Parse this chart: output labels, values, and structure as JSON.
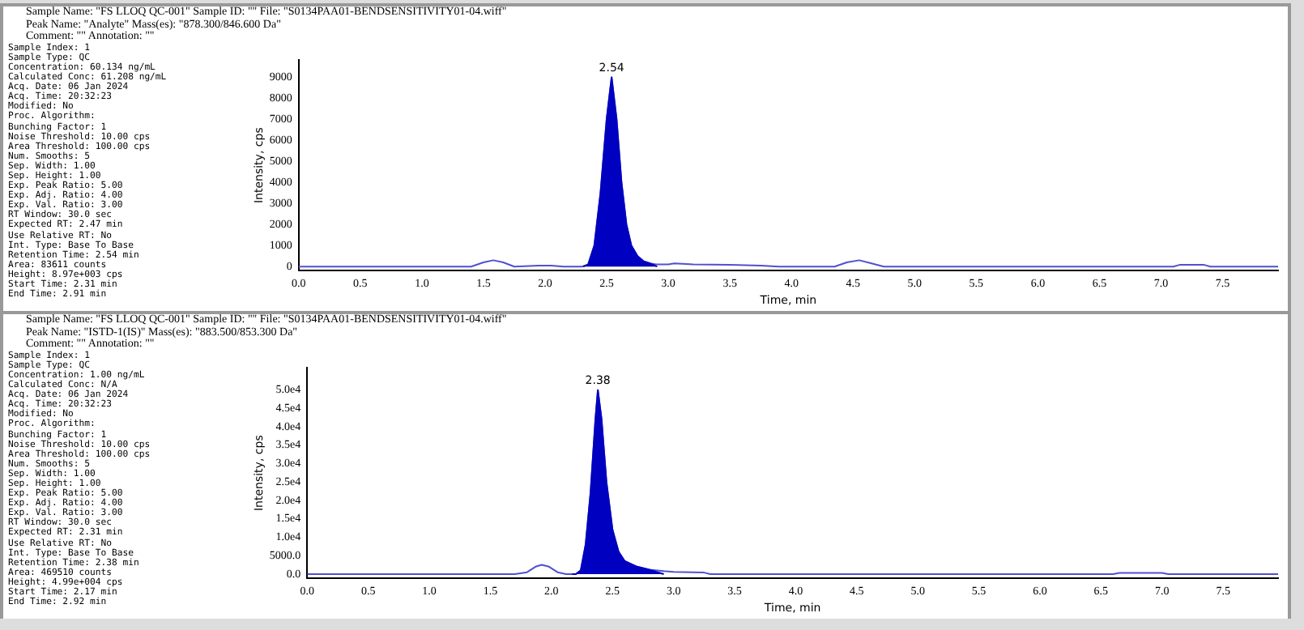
{
  "chart_data": [
    {
      "type": "line",
      "title": "Sample Name: \"FS LLOQ QC-001\" Sample ID: \"\" File: \"S0134PAA01-BENDSENSITIVITY01-04.wiff\"",
      "subtitle": "Peak Name: \"Analyte\" Mass(es): \"878.300/846.600 Da\"",
      "xlabel": "Time, min",
      "ylabel": "Intensity, cps",
      "annotations": [
        "Comment: \"\" Annotation: \"\"",
        "Sample Index: 1",
        "Sample Type: QC",
        "Concentration: 60.134 ng/mL",
        "Calculated Conc: 61.208 ng/mL",
        "Acq. Date: 06 Jan 2024",
        "Acq. Time: 20:32:23",
        "Modified: No",
        "Proc. Algorithm:",
        "Bunching Factor: 1",
        "Noise Threshold: 10.00 cps",
        "Area Threshold: 100.00 cps",
        "Num. Smooths: 5",
        "Sep. Width: 1.00",
        "Sep. Height: 1.00",
        "Exp. Peak Ratio: 5.00",
        "Exp. Adj. Ratio: 4.00",
        "Exp. Val. Ratio: 3.00",
        "RT Window: 30.0 sec",
        "Expected RT: 2.47 min",
        "Use Relative RT: No",
        "Int. Type: Base To Base",
        "Retention Time: 2.54 min",
        "Area: 83611 counts",
        "Height: 8.97e+003 cps",
        "Start Time: 2.31 min",
        "End Time: 2.91 min",
        {
          "text": "2.54",
          "x": 2.54,
          "y": 8970
        }
      ],
      "series": [
        {
          "type": "line",
          "color": "#5050d0",
          "x": [
            0,
            1.4,
            1.5,
            1.58,
            1.66,
            1.75,
            1.95,
            2.05,
            2.15,
            2.3,
            2.35,
            2.4,
            2.45,
            2.5,
            2.54,
            2.58,
            2.62,
            2.66,
            2.7,
            2.75,
            2.8,
            2.85,
            2.9,
            3.0,
            3.05,
            3.2,
            3.5,
            3.75,
            3.9,
            4.35,
            4.45,
            4.55,
            4.65,
            4.75,
            7.1,
            7.15,
            7.35,
            7.4,
            7.95
          ],
          "values": [
            0,
            0,
            200,
            300,
            200,
            0,
            50,
            50,
            0,
            0,
            100,
            1000,
            3500,
            7000,
            8970,
            7000,
            4000,
            2000,
            1000,
            500,
            250,
            150,
            100,
            100,
            150,
            100,
            80,
            50,
            0,
            0,
            200,
            300,
            150,
            0,
            0,
            80,
            80,
            0,
            0
          ]
        },
        {
          "type": "area",
          "color": "#0000c0",
          "x": [
            2.31,
            2.35,
            2.4,
            2.45,
            2.5,
            2.54,
            2.58,
            2.62,
            2.66,
            2.7,
            2.75,
            2.8,
            2.85,
            2.91
          ],
          "values": [
            0,
            100,
            1000,
            3500,
            7000,
            8970,
            7000,
            4000,
            2000,
            1000,
            500,
            250,
            150,
            0
          ]
        }
      ],
      "xlim": [
        0,
        7.95
      ],
      "ylim": [
        -200,
        9800
      ],
      "xticks": [
        {
          "value": 0,
          "label": "0.0"
        },
        0.5,
        {
          "value": 1,
          "label": "1.0"
        },
        1.5,
        {
          "value": 2,
          "label": "2.0"
        },
        2.5,
        {
          "value": 3,
          "label": "3.0"
        },
        3.5,
        {
          "value": 4,
          "label": "4.0"
        },
        4.5,
        {
          "value": 5,
          "label": "5.0"
        },
        5.5,
        {
          "value": 6,
          "label": "6.0"
        },
        6.5,
        {
          "value": 7,
          "label": "7.0"
        },
        7.5
      ],
      "yticks": [
        0,
        1000,
        2000,
        3000,
        4000,
        5000,
        6000,
        7000,
        8000,
        9000
      ]
    },
    {
      "type": "line",
      "title": "Sample Name: \"FS LLOQ QC-001\" Sample ID: \"\" File: \"S0134PAA01-BENDSENSITIVITY01-04.wiff\"",
      "subtitle": "Peak Name: \"ISTD-1(IS)\" Mass(es): \"883.500/853.300 Da\"",
      "xlabel": "Time, min",
      "ylabel": "Intensity, cps",
      "annotations": [
        "Comment: \"\" Annotation: \"\"",
        "Sample Index: 1",
        "Sample Type: QC",
        "Concentration: 1.00 ng/mL",
        "Calculated Conc: N/A",
        "Acq. Date: 06 Jan 2024",
        "Acq. Time: 20:32:23",
        "Modified: No",
        "Proc. Algorithm:",
        "Bunching Factor: 1",
        "Noise Threshold: 10.00 cps",
        "Area Threshold: 100.00 cps",
        "Num. Smooths: 5",
        "Sep. Width: 1.00",
        "Sep. Height: 1.00",
        "Exp. Peak Ratio: 5.00",
        "Exp. Adj. Ratio: 4.00",
        "Exp. Val. Ratio: 3.00",
        "RT Window: 30.0 sec",
        "Expected RT: 2.31 min",
        "Use Relative RT: No",
        "Int. Type: Base To Base",
        "Retention Time: 2.38 min",
        "Area: 469510 counts",
        "Height: 4.99e+004 cps",
        "Start Time: 2.17 min",
        "End Time: 2.92 min",
        {
          "text": "2.38",
          "x": 2.38,
          "y": 49900
        }
      ],
      "series": [
        {
          "type": "line",
          "color": "#5050d0",
          "x": [
            0,
            1.7,
            1.8,
            1.87,
            1.92,
            1.98,
            2.05,
            2.12,
            2.2,
            2.24,
            2.28,
            2.32,
            2.36,
            2.38,
            2.41,
            2.45,
            2.5,
            2.55,
            2.6,
            2.7,
            2.8,
            2.92,
            3.0,
            3.25,
            3.3,
            6.6,
            6.65,
            7.0,
            7.05,
            7.95
          ],
          "values": [
            0,
            0,
            500,
            2000,
            2500,
            2000,
            500,
            0,
            0,
            1000,
            8000,
            22000,
            42000,
            49900,
            42000,
            25000,
            12000,
            6000,
            3500,
            2000,
            1200,
            800,
            600,
            400,
            0,
            0,
            300,
            300,
            0,
            0
          ]
        },
        {
          "type": "area",
          "color": "#0000c0",
          "x": [
            2.17,
            2.2,
            2.24,
            2.28,
            2.32,
            2.36,
            2.38,
            2.41,
            2.45,
            2.5,
            2.55,
            2.6,
            2.7,
            2.8,
            2.92
          ],
          "values": [
            0,
            0,
            1000,
            8000,
            22000,
            42000,
            49900,
            42000,
            25000,
            12000,
            6000,
            3500,
            2000,
            1200,
            0
          ]
        }
      ],
      "xlim": [
        0,
        7.95
      ],
      "ylim": [
        -1200,
        56000
      ],
      "xticks": [
        {
          "value": 0,
          "label": "0.0"
        },
        0.5,
        {
          "value": 1,
          "label": "1.0"
        },
        1.5,
        {
          "value": 2,
          "label": "2.0"
        },
        2.5,
        {
          "value": 3,
          "label": "3.0"
        },
        3.5,
        {
          "value": 4,
          "label": "4.0"
        },
        4.5,
        {
          "value": 5,
          "label": "5.0"
        },
        5.5,
        {
          "value": 6,
          "label": "6.0"
        },
        6.5,
        {
          "value": 7,
          "label": "7.0"
        },
        7.5
      ],
      "yticks": [
        {
          "value": 0,
          "label": "0.0"
        },
        {
          "value": 5000,
          "label": "5000.0"
        },
        {
          "value": 10000,
          "label": "1.0e4"
        },
        {
          "value": 15000,
          "label": "1.5e4"
        },
        {
          "value": 20000,
          "label": "2.0e4"
        },
        {
          "value": 25000,
          "label": "2.5e4"
        },
        {
          "value": 30000,
          "label": "3.0e4"
        },
        {
          "value": 35000,
          "label": "3.5e4"
        },
        {
          "value": 40000,
          "label": "4.0e4"
        },
        {
          "value": 45000,
          "label": "4.5e4"
        },
        {
          "value": 50000,
          "label": "5.0e4"
        }
      ]
    }
  ]
}
